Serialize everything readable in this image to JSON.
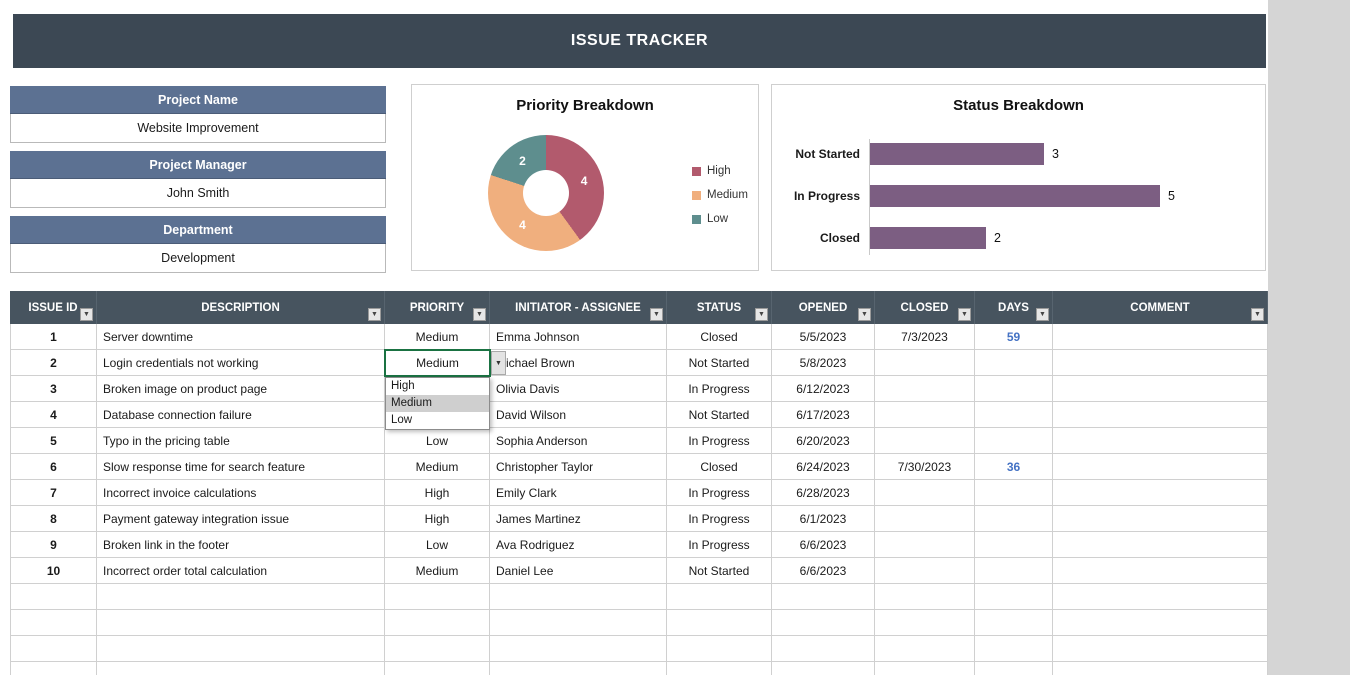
{
  "title": "ISSUE TRACKER",
  "project_info": [
    {
      "label": "Project Name",
      "value": "Website Improvement"
    },
    {
      "label": "Project Manager",
      "value": "John Smith"
    },
    {
      "label": "Department",
      "value": "Development"
    }
  ],
  "chart_data": [
    {
      "type": "pie",
      "donut": true,
      "title": "Priority Breakdown",
      "labels": [
        "High",
        "Medium",
        "Low"
      ],
      "values": [
        4,
        4,
        2
      ],
      "colors": [
        "#b25a6d",
        "#f0af7e",
        "#5e8e8e"
      ],
      "legend_position": "right"
    },
    {
      "type": "bar",
      "orientation": "horizontal",
      "title": "Status Breakdown",
      "categories": [
        "Not Started",
        "In Progress",
        "Closed"
      ],
      "values": [
        3,
        5,
        2
      ],
      "bar_color": "#7c5e82",
      "xlim": [
        0,
        5.5
      ],
      "grid": false
    }
  ],
  "table": {
    "headers": [
      "ISSUE ID",
      "DESCRIPTION",
      "PRIORITY",
      "INITIATOR - ASSIGNEE",
      "STATUS",
      "OPENED",
      "CLOSED",
      "DAYS",
      "COMMENT"
    ],
    "rows": [
      [
        "1",
        "Server downtime",
        "Medium",
        "Emma Johnson",
        "Closed",
        "5/5/2023",
        "7/3/2023",
        "59",
        ""
      ],
      [
        "2",
        "Login credentials not working",
        "Medium",
        "Michael Brown",
        "Not Started",
        "5/8/2023",
        "",
        "",
        ""
      ],
      [
        "3",
        "Broken image on product page",
        "",
        "Olivia Davis",
        "In Progress",
        "6/12/2023",
        "",
        "",
        ""
      ],
      [
        "4",
        "Database connection failure",
        "",
        "David Wilson",
        "Not Started",
        "6/17/2023",
        "",
        "",
        ""
      ],
      [
        "5",
        "Typo in the pricing table",
        "Low",
        "Sophia Anderson",
        "In Progress",
        "6/20/2023",
        "",
        "",
        ""
      ],
      [
        "6",
        "Slow response time for search feature",
        "Medium",
        "Christopher Taylor",
        "Closed",
        "6/24/2023",
        "7/30/2023",
        "36",
        ""
      ],
      [
        "7",
        "Incorrect invoice calculations",
        "High",
        "Emily Clark",
        "In Progress",
        "6/28/2023",
        "",
        "",
        ""
      ],
      [
        "8",
        "Payment gateway integration issue",
        "High",
        "James Martinez",
        "In Progress",
        "6/1/2023",
        "",
        "",
        ""
      ],
      [
        "9",
        "Broken link in the footer",
        "Low",
        "Ava Rodriguez",
        "In Progress",
        "6/6/2023",
        "",
        "",
        ""
      ],
      [
        "10",
        "Incorrect order total calculation",
        "Medium",
        "Daniel Lee",
        "Not Started",
        "6/6/2023",
        "",
        "",
        ""
      ]
    ],
    "empty_row_count": 4
  },
  "priority_dropdown": {
    "selected": "Medium",
    "options": [
      "High",
      "Medium",
      "Low"
    ],
    "highlighted": "Medium"
  },
  "icons": {
    "filter_arrow": "▼",
    "combo_arrow": "▼"
  },
  "colors": {
    "title_bar": "#3c4854",
    "table_header": "#47545f",
    "field_header": "#5c7192",
    "days_text": "#4472c4",
    "dropdown_border": "#1a7242"
  }
}
